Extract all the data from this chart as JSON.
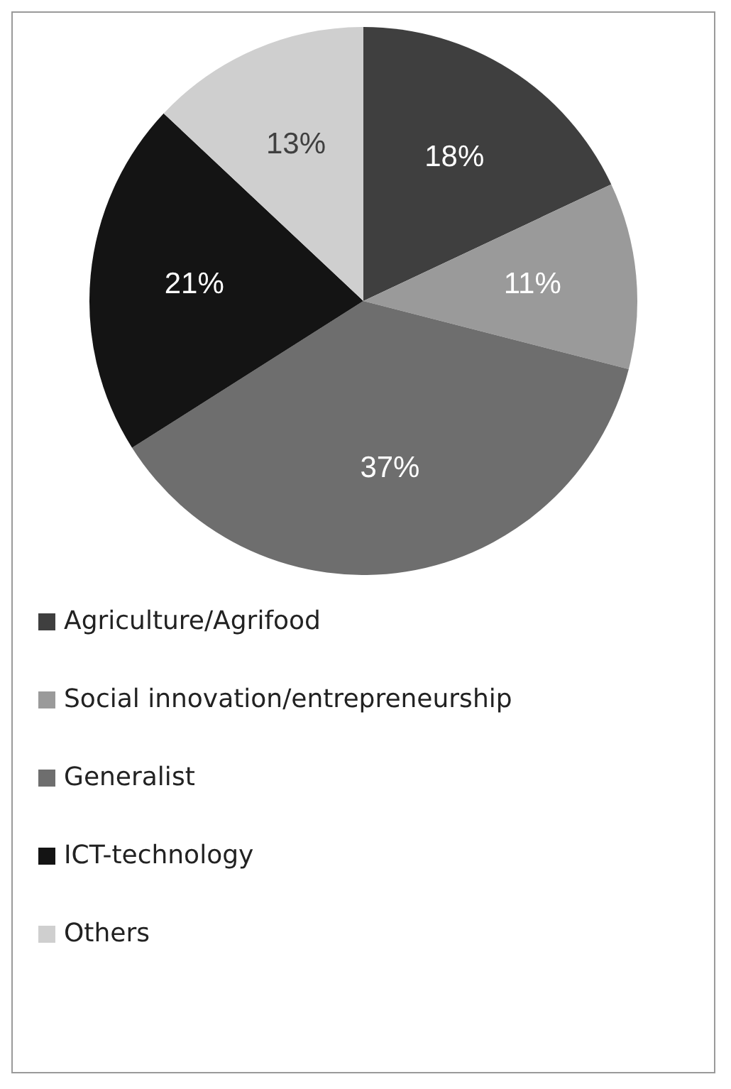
{
  "chart_data": {
    "type": "pie",
    "categories": [
      "Agriculture/Agrifood",
      "Social innovation/entrepreneurship",
      "Generalist",
      "ICT-technology",
      "Others"
    ],
    "values": [
      18,
      11,
      37,
      21,
      13
    ],
    "colors": [
      "#3f3f3f",
      "#9a9a9a",
      "#6e6e6e",
      "#141414",
      "#cfcfcf"
    ],
    "value_labels": [
      "18%",
      "11%",
      "37%",
      "21%",
      "13%"
    ],
    "legend": "bottom"
  }
}
